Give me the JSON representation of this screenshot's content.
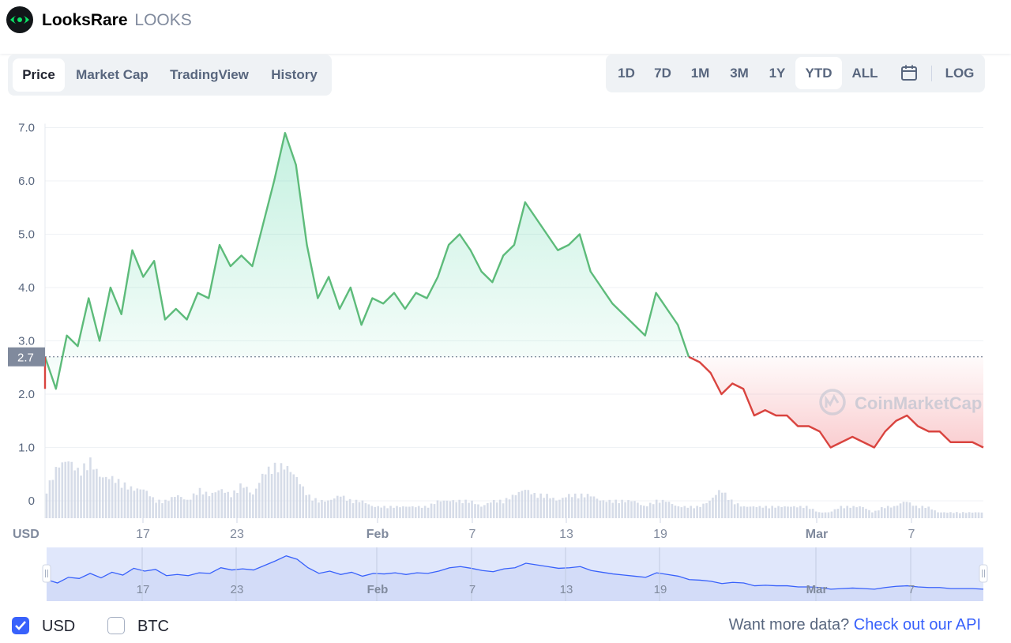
{
  "header": {
    "name": "LooksRare",
    "symbol": "LOOKS",
    "logo_icon": "looksrare-eye-icon"
  },
  "tabs": [
    {
      "label": "Price",
      "active": true
    },
    {
      "label": "Market Cap",
      "active": false
    },
    {
      "label": "TradingView",
      "active": false
    },
    {
      "label": "History",
      "active": false
    }
  ],
  "ranges": [
    {
      "label": "1D",
      "active": false
    },
    {
      "label": "7D",
      "active": false
    },
    {
      "label": "1M",
      "active": false
    },
    {
      "label": "3M",
      "active": false
    },
    {
      "label": "1Y",
      "active": false
    },
    {
      "label": "YTD",
      "active": true
    },
    {
      "label": "ALL",
      "active": false
    }
  ],
  "calendar_icon": "calendar-icon",
  "log_label": "LOG",
  "colors": {
    "up": "#16c784",
    "up_line": "#5dbb7a",
    "down": "#ea3943",
    "down_line": "#d9443f",
    "volume": "#cfd6e4",
    "navigator_line": "#3861fb",
    "navigator_fill": "#e0e7fb",
    "link": "#3861fb"
  },
  "chart_data": {
    "type": "line",
    "currency_label": "USD",
    "yticks": [
      "7.0",
      "6.0",
      "5.0",
      "4.0",
      "3.0",
      "2.0",
      "1.0",
      "0"
    ],
    "ylim": [
      0,
      7.0
    ],
    "reference_price": 2.7,
    "reference_label": "2.7",
    "xticks": [
      "17",
      "23",
      "Feb",
      "7",
      "13",
      "19",
      "Mar",
      "7"
    ],
    "bold_xticks": [
      "Feb",
      "Mar"
    ],
    "watermark": "CoinMarketCap",
    "series": [
      {
        "values": [
          2.7,
          2.1,
          3.1,
          2.9,
          3.8,
          3.0,
          4.0,
          3.5,
          4.7,
          4.2,
          4.5,
          3.4,
          3.6,
          3.4,
          3.9,
          3.8,
          4.8,
          4.4,
          4.6,
          4.4,
          5.2,
          6.0,
          6.9,
          6.3,
          4.8,
          3.8,
          4.2,
          3.6,
          4.0,
          3.3,
          3.8,
          3.7,
          3.9,
          3.6,
          3.9,
          3.8,
          4.2,
          4.8,
          5.0,
          4.7,
          4.3,
          4.1,
          4.6,
          4.8,
          5.6,
          5.3,
          5.0,
          4.7,
          4.8,
          5.0,
          4.3,
          4.0,
          3.7,
          3.5,
          3.3,
          3.1,
          3.9,
          3.6,
          3.3,
          2.7,
          2.6,
          2.4,
          2.0,
          2.2,
          2.1,
          1.6,
          1.7,
          1.6,
          1.6,
          1.4,
          1.4,
          1.3,
          1.0,
          1.1,
          1.2,
          1.1,
          1.0,
          1.3,
          1.5,
          1.6,
          1.4,
          1.3,
          1.3,
          1.1,
          1.1,
          1.1,
          1.0
        ],
        "volume": [
          0.5,
          0.9,
          1.0,
          0.8,
          1.0,
          0.7,
          0.7,
          0.6,
          0.5,
          0.5,
          0.3,
          0.3,
          0.4,
          0.3,
          0.5,
          0.4,
          0.5,
          0.4,
          0.6,
          0.4,
          0.8,
          0.9,
          0.9,
          0.7,
          0.4,
          0.3,
          0.3,
          0.4,
          0.3,
          0.3,
          0.2,
          0.2,
          0.2,
          0.2,
          0.2,
          0.2,
          0.3,
          0.3,
          0.3,
          0.3,
          0.2,
          0.3,
          0.3,
          0.4,
          0.5,
          0.4,
          0.4,
          0.3,
          0.4,
          0.4,
          0.4,
          0.3,
          0.3,
          0.3,
          0.3,
          0.2,
          0.3,
          0.3,
          0.2,
          0.2,
          0.2,
          0.3,
          0.5,
          0.3,
          0.2,
          0.2,
          0.2,
          0.2,
          0.2,
          0.2,
          0.2,
          0.1,
          0.1,
          0.2,
          0.2,
          0.2,
          0.1,
          0.2,
          0.2,
          0.3,
          0.2,
          0.2,
          0.1,
          0.1,
          0.1,
          0.1,
          0.1
        ]
      }
    ]
  },
  "footer": {
    "usd_label": "USD",
    "usd_checked": true,
    "btc_label": "BTC",
    "btc_checked": false,
    "api_prefix": "Want more data?",
    "api_link": "Check out our API"
  }
}
